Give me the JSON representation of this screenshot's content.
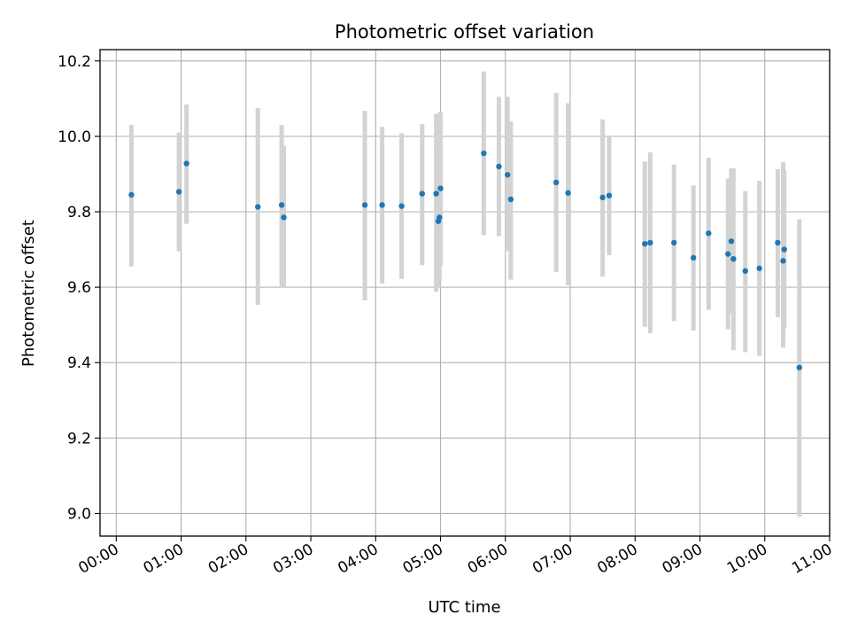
{
  "chart_data": {
    "type": "scatter",
    "title": "Photometric offset variation",
    "xlabel": "UTC time",
    "ylabel": "Photometric offset",
    "x_unit": "UTC time (HH:MM)",
    "xlim": [
      "-00:15",
      "11:00"
    ],
    "ylim": [
      8.94,
      10.23
    ],
    "x_ticks": [
      "00:00",
      "01:00",
      "02:00",
      "03:00",
      "04:00",
      "05:00",
      "06:00",
      "07:00",
      "08:00",
      "09:00",
      "10:00",
      "11:00"
    ],
    "y_ticks": [
      9.0,
      9.2,
      9.4,
      9.6,
      9.8,
      10.0,
      10.2
    ],
    "grid": true,
    "colors": {
      "point": "#1f77b4",
      "errorbar": "#d3d3d3",
      "grid": "#b0b0b0"
    },
    "points": [
      {
        "x": "00:14",
        "y": 9.845,
        "ylow": 9.655,
        "yhigh": 10.03
      },
      {
        "x": "00:58",
        "y": 9.853,
        "ylow": 9.695,
        "yhigh": 10.01
      },
      {
        "x": "01:05",
        "y": 9.928,
        "ylow": 9.768,
        "yhigh": 10.085
      },
      {
        "x": "02:11",
        "y": 9.813,
        "ylow": 9.553,
        "yhigh": 10.075
      },
      {
        "x": "02:33",
        "y": 9.818,
        "ylow": 9.598,
        "yhigh": 10.03
      },
      {
        "x": "02:35",
        "y": 9.785,
        "ylow": 9.598,
        "yhigh": 9.975
      },
      {
        "x": "03:50",
        "y": 9.818,
        "ylow": 9.565,
        "yhigh": 10.068
      },
      {
        "x": "04:06",
        "y": 9.818,
        "ylow": 9.61,
        "yhigh": 10.025
      },
      {
        "x": "04:24",
        "y": 9.815,
        "ylow": 9.622,
        "yhigh": 10.008
      },
      {
        "x": "04:43",
        "y": 9.848,
        "ylow": 9.658,
        "yhigh": 10.032
      },
      {
        "x": "04:56",
        "y": 9.848,
        "ylow": 9.588,
        "yhigh": 10.06
      },
      {
        "x": "04:58",
        "y": 9.775,
        "ylow": 9.598,
        "yhigh": 9.95
      },
      {
        "x": "04:59",
        "y": 9.785,
        "ylow": 9.618,
        "yhigh": 9.955
      },
      {
        "x": "05:00",
        "y": 9.862,
        "ylow": 9.658,
        "yhigh": 10.065
      },
      {
        "x": "05:40",
        "y": 9.955,
        "ylow": 9.738,
        "yhigh": 10.172
      },
      {
        "x": "05:54",
        "y": 9.92,
        "ylow": 9.735,
        "yhigh": 10.105
      },
      {
        "x": "06:02",
        "y": 9.898,
        "ylow": 9.695,
        "yhigh": 10.105
      },
      {
        "x": "06:05",
        "y": 9.833,
        "ylow": 9.62,
        "yhigh": 10.04
      },
      {
        "x": "06:47",
        "y": 9.878,
        "ylow": 9.64,
        "yhigh": 10.115
      },
      {
        "x": "06:58",
        "y": 9.85,
        "ylow": 9.605,
        "yhigh": 10.088
      },
      {
        "x": "07:30",
        "y": 9.838,
        "ylow": 9.628,
        "yhigh": 10.045
      },
      {
        "x": "07:36",
        "y": 9.843,
        "ylow": 9.685,
        "yhigh": 10.0
      },
      {
        "x": "08:09",
        "y": 9.715,
        "ylow": 9.495,
        "yhigh": 9.933
      },
      {
        "x": "08:14",
        "y": 9.718,
        "ylow": 9.478,
        "yhigh": 9.958
      },
      {
        "x": "08:36",
        "y": 9.718,
        "ylow": 9.51,
        "yhigh": 9.925
      },
      {
        "x": "08:54",
        "y": 9.678,
        "ylow": 9.485,
        "yhigh": 9.87
      },
      {
        "x": "09:08",
        "y": 9.743,
        "ylow": 9.54,
        "yhigh": 9.943
      },
      {
        "x": "09:26",
        "y": 9.688,
        "ylow": 9.488,
        "yhigh": 9.888
      },
      {
        "x": "09:29",
        "y": 9.722,
        "ylow": 9.53,
        "yhigh": 9.915
      },
      {
        "x": "09:31",
        "y": 9.675,
        "ylow": 9.433,
        "yhigh": 9.915
      },
      {
        "x": "09:42",
        "y": 9.643,
        "ylow": 9.428,
        "yhigh": 9.855
      },
      {
        "x": "09:55",
        "y": 9.65,
        "ylow": 9.418,
        "yhigh": 9.882
      },
      {
        "x": "10:12",
        "y": 9.718,
        "ylow": 9.52,
        "yhigh": 9.913
      },
      {
        "x": "10:17",
        "y": 9.67,
        "ylow": 9.44,
        "yhigh": 9.932
      },
      {
        "x": "10:18",
        "y": 9.7,
        "ylow": 9.49,
        "yhigh": 9.91
      },
      {
        "x": "10:32",
        "y": 9.387,
        "ylow": 8.992,
        "yhigh": 9.78
      }
    ]
  }
}
